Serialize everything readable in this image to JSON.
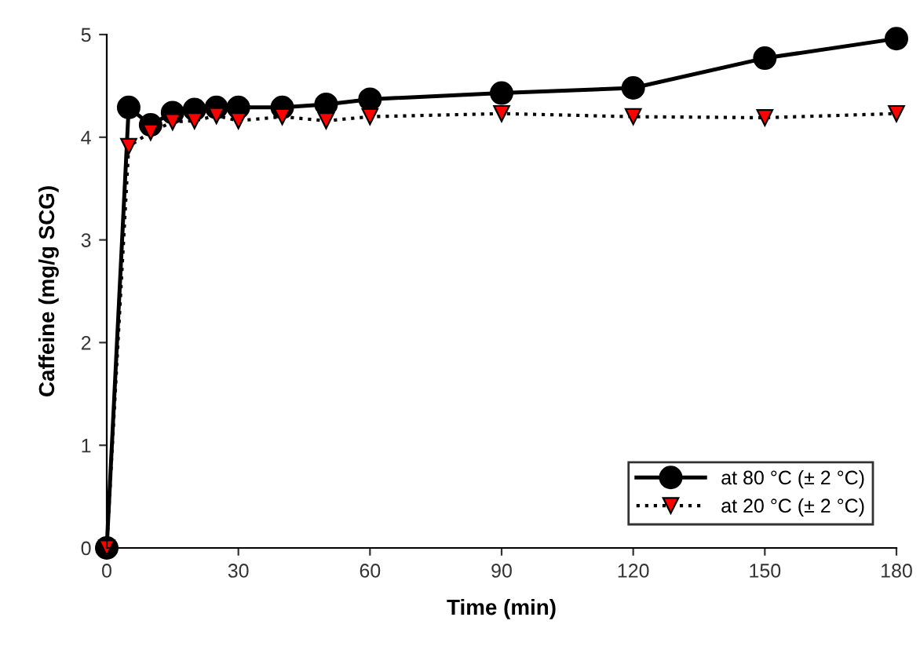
{
  "chart_data": {
    "type": "line",
    "xlabel": "Time (min)",
    "ylabel": "Caffeine (mg/g SCG)",
    "x": [
      0,
      5,
      10,
      15,
      20,
      25,
      30,
      40,
      50,
      60,
      90,
      120,
      150,
      180
    ],
    "series": [
      {
        "name": "at 80 °C (± 2 °C)",
        "color": "#000000",
        "marker": "circle",
        "line_style": "solid",
        "values": [
          0,
          4.29,
          4.12,
          4.24,
          4.27,
          4.29,
          4.29,
          4.29,
          4.32,
          4.37,
          4.43,
          4.48,
          4.77,
          4.96
        ]
      },
      {
        "name": "at 20 °C (± 2 °C)",
        "color": "#ff0000",
        "marker": "triangle",
        "line_style": "dotted",
        "values": [
          0,
          3.91,
          4.05,
          4.15,
          4.16,
          4.21,
          4.16,
          4.2,
          4.16,
          4.2,
          4.23,
          4.2,
          4.19,
          4.23
        ]
      }
    ],
    "xlim": [
      0,
      180
    ],
    "xticks": [
      0,
      30,
      60,
      90,
      120,
      150,
      180
    ],
    "ylim": [
      0,
      5
    ],
    "yticks": [
      0,
      1,
      2,
      3,
      4,
      5
    ],
    "grid": false,
    "legend": "bottom right"
  }
}
